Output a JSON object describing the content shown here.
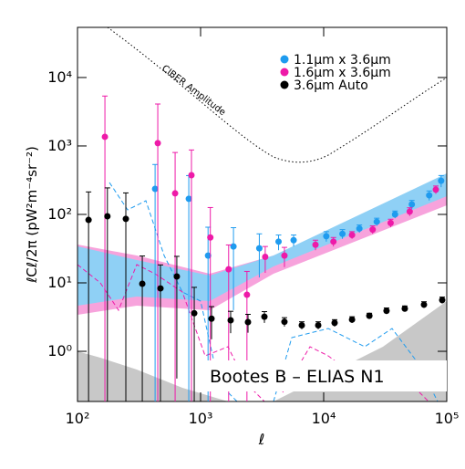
{
  "chart_data": {
    "type": "scatter",
    "x_label": "ℓ",
    "y_label": "ℓCℓ/2π   (pW²m⁻⁴sr⁻²)",
    "xlim": [
      100,
      100000
    ],
    "ylim": [
      0.185,
      54000
    ],
    "log_x": true,
    "log_y": true,
    "xticks": [
      {
        "value": 100,
        "label": "10²"
      },
      {
        "value": 1000,
        "label": "10³"
      },
      {
        "value": 10000,
        "label": "10⁴"
      },
      {
        "value": 100000,
        "label": "10⁵"
      }
    ],
    "yticks": [
      {
        "value": 1,
        "label": "10⁰"
      },
      {
        "value": 10,
        "label": "10¹"
      },
      {
        "value": 100,
        "label": "10²"
      },
      {
        "value": 1000,
        "label": "10³"
      },
      {
        "value": 10000,
        "label": "10⁴"
      }
    ],
    "legend": "top-right",
    "annotations": [
      "CIBER Amplitude",
      "Bootes B – ELIAS N1"
    ],
    "series": [
      {
        "name": "1.1μm x 3.6μm",
        "color": "#1e9bef",
        "x": [
          427,
          802,
          1150,
          1850,
          3000,
          4300,
          5700,
          10500,
          14200,
          19500,
          27000,
          38000,
          52000,
          72000,
          90000
        ],
        "values": [
          236,
          169,
          25,
          34,
          32,
          40,
          42,
          48,
          52,
          62,
          78,
          100,
          140,
          190,
          310
        ],
        "errors": [
          300,
          200,
          40,
          30,
          20,
          10,
          8,
          8,
          8,
          8,
          10,
          12,
          20,
          30,
          60
        ]
      },
      {
        "name": "1.6μm x 3.6μm",
        "color": "#ee1aa8",
        "x": [
          167,
          449,
          621,
          843,
          1200,
          1690,
          2380,
          3350,
          4800,
          8580,
          12000,
          17000,
          25000,
          35000,
          50000,
          81500
        ],
        "values": [
          1360,
          1100,
          203,
          374,
          46,
          15.8,
          6.7,
          24,
          25,
          36,
          40,
          50,
          60,
          75,
          110,
          230
        ],
        "errors": [
          4000,
          3000,
          600,
          500,
          80,
          20,
          8,
          10,
          8,
          6,
          6,
          6,
          8,
          10,
          15,
          30
        ]
      },
      {
        "name": "3.6μm Auto",
        "color": "#000000",
        "x": [
          123,
          175,
          247,
          336,
          472,
          641,
          888,
          1227,
          1755,
          2427,
          3300,
          4800,
          6640,
          9030,
          12270,
          17000,
          23500,
          32400,
          45600,
          65300,
          91800
        ],
        "values": [
          83,
          94,
          86,
          9.7,
          8.3,
          12.4,
          3.6,
          3.0,
          2.84,
          2.67,
          3.2,
          2.7,
          2.4,
          2.4,
          2.6,
          2.9,
          3.3,
          3.9,
          4.2,
          4.8,
          5.6
        ],
        "errors": [
          130,
          150,
          120,
          15,
          10,
          12,
          5,
          1.5,
          1,
          0.8,
          0.6,
          0.4,
          0.3,
          0.3,
          0.3,
          0.3,
          0.3,
          0.4,
          0.4,
          0.5,
          0.6
        ]
      }
    ]
  }
}
